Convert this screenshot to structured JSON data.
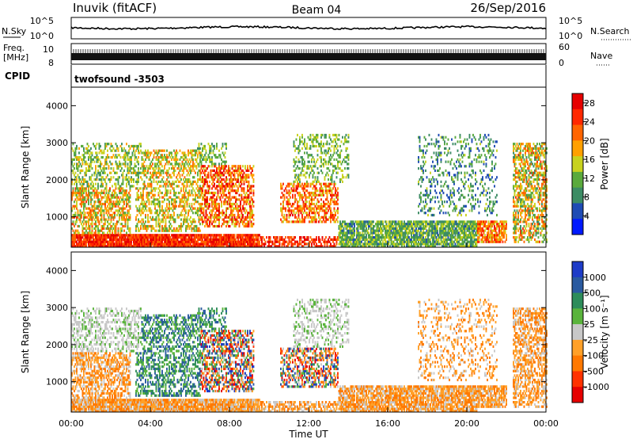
{
  "header": {
    "station": "Inuvik (fitACF)",
    "beam": "Beam 04",
    "date": "26/Sep/2016"
  },
  "strips": {
    "nsky_label": "N.Sky",
    "nsearch_label": "N.Search",
    "nsky_ticks": [
      "10^5",
      "10^0"
    ],
    "nsearch_ticks": [
      "10^5",
      "10^0"
    ],
    "freq_label_line1": "Freq.",
    "freq_label_line2": "[MHz]",
    "freq_ticks": [
      "10",
      "8"
    ],
    "nave_label": "Nave",
    "nave_ticks": [
      "60",
      "0"
    ],
    "cpid_label": "CPID",
    "cpid_value": "twofsound -3503"
  },
  "colors": {
    "power_scale": [
      "#0019ff",
      "#1e4bb4",
      "#3c8c64",
      "#5aaa3c",
      "#c8d21e",
      "#ffa000",
      "#ff6400",
      "#ff2800",
      "#e60000"
    ],
    "velocity_scale": [
      "#e60000",
      "#ff3200",
      "#ff7800",
      "#ffa028",
      "#c8c8c8",
      "#5ab43c",
      "#2d8c5a",
      "#2a5aa0",
      "#1e3cc8"
    ]
  },
  "chart_data": [
    {
      "type": "heatmap",
      "panel": "power",
      "ylabel": "Slant Range [km]",
      "yticks": [
        "1000",
        "2000",
        "3000",
        "4000"
      ],
      "ylim": [
        180,
        4500
      ],
      "xlim_hours": [
        0,
        24
      ],
      "colorbar": {
        "label": "Power [dB]",
        "range": [
          0,
          30
        ],
        "ticks": [
          "4",
          "8",
          "12",
          "16",
          "20",
          "24",
          "28"
        ]
      }
    },
    {
      "type": "heatmap",
      "panel": "velocity",
      "ylabel": "Slant Range [km]",
      "yticks": [
        "1000",
        "2000",
        "3000",
        "4000"
      ],
      "ylim": [
        180,
        4500
      ],
      "xlabel": "Time UT",
      "xticks": [
        "00:00",
        "04:00",
        "08:00",
        "12:00",
        "16:00",
        "20:00",
        "00:00"
      ],
      "colorbar": {
        "label": "Velocity [m s⁻¹]",
        "ticks": [
          "1000",
          "500",
          "100",
          "25",
          "-25",
          "-100",
          "-500",
          "-1000"
        ]
      }
    }
  ]
}
